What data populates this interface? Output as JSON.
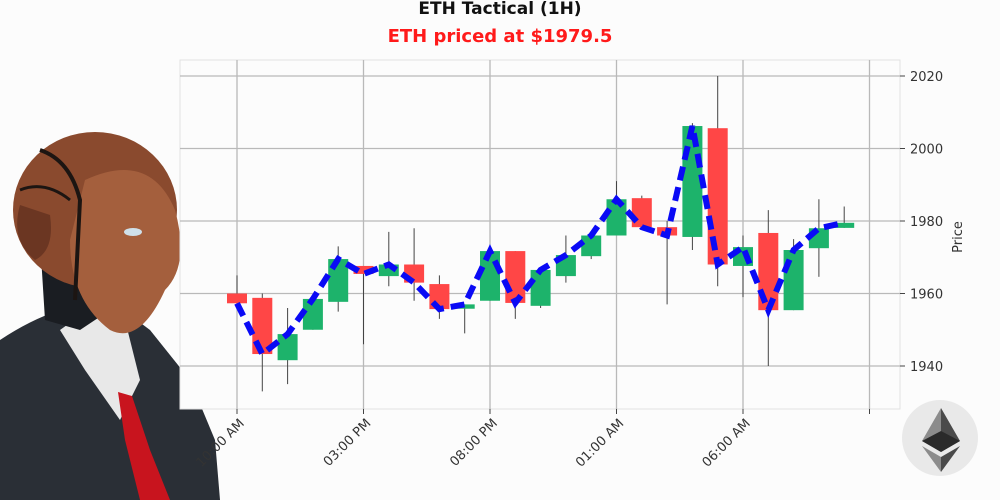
{
  "header": {
    "title": "ETH Tactical (1H)",
    "subtitle": "ETH priced at $1979.5",
    "subtitle_color": "#ff1a1a"
  },
  "colors": {
    "up": "#1db36b",
    "down": "#ff4646",
    "line": "#0a0af5",
    "grid": "#b9b9b9",
    "background": "#fcfcfc"
  },
  "decorations": {
    "left_image": "android-businessman-illustration",
    "corner_logo": "ethereum-logo"
  },
  "chart_data": {
    "type": "candlestick",
    "title": "ETH Tactical (1H)",
    "subtitle": "ETH priced at $1979.5",
    "xlabel": "",
    "ylabel": "Price",
    "ylim": [
      1933,
      2024
    ],
    "yticks": [
      1940,
      1960,
      1980,
      2000,
      2020
    ],
    "xticks": [
      "10:00 AM",
      "03:00 PM",
      "08:00 PM",
      "01:00 AM",
      "06:00 AM",
      ""
    ],
    "xtick_candle_index": [
      0,
      5,
      10,
      15,
      20,
      25
    ],
    "grid": true,
    "y_axis_position": "right",
    "overlay_line": {
      "style": "dashed",
      "color": "#0a0af5",
      "series": "close"
    },
    "candles": [
      {
        "o": 1960.0,
        "h": 1965.0,
        "l": 1957.3,
        "c": 1957.3
      },
      {
        "o": 1958.8,
        "h": 1960.0,
        "l": 1933.0,
        "c": 1943.3
      },
      {
        "o": 1941.6,
        "h": 1956.0,
        "l": 1935.0,
        "c": 1948.8
      },
      {
        "o": 1950.0,
        "h": 1958.5,
        "l": 1950.0,
        "c": 1958.5
      },
      {
        "o": 1957.7,
        "h": 1973.0,
        "l": 1955.0,
        "c": 1969.5
      },
      {
        "o": 1967.6,
        "h": 1967.6,
        "l": 1946.0,
        "c": 1965.4
      },
      {
        "o": 1964.8,
        "h": 1977.0,
        "l": 1962.0,
        "c": 1968.0
      },
      {
        "o": 1968.0,
        "h": 1978.0,
        "l": 1958.0,
        "c": 1963.0
      },
      {
        "o": 1962.6,
        "h": 1965.0,
        "l": 1953.0,
        "c": 1955.7
      },
      {
        "o": 1955.8,
        "h": 1957.0,
        "l": 1949.0,
        "c": 1957.0
      },
      {
        "o": 1958.0,
        "h": 1971.7,
        "l": 1958.0,
        "c": 1971.7
      },
      {
        "o": 1971.7,
        "h": 1971.7,
        "l": 1953.0,
        "c": 1957.4
      },
      {
        "o": 1956.6,
        "h": 1966.5,
        "l": 1956.0,
        "c": 1966.5
      },
      {
        "o": 1964.8,
        "h": 1976.0,
        "l": 1963.0,
        "c": 1970.6
      },
      {
        "o": 1970.3,
        "h": 1977.0,
        "l": 1969.5,
        "c": 1976.0
      },
      {
        "o": 1976.0,
        "h": 1991.0,
        "l": 1976.0,
        "c": 1986.0
      },
      {
        "o": 1986.3,
        "h": 1987.0,
        "l": 1978.3,
        "c": 1978.3
      },
      {
        "o": 1978.3,
        "h": 1980.0,
        "l": 1957.0,
        "c": 1976.0
      },
      {
        "o": 1975.6,
        "h": 2007.0,
        "l": 1972.0,
        "c": 2006.2
      },
      {
        "o": 2005.6,
        "h": 2020.0,
        "l": 1962.0,
        "c": 1968.0
      },
      {
        "o": 1967.6,
        "h": 1976.0,
        "l": 1959.0,
        "c": 1972.8
      },
      {
        "o": 1976.7,
        "h": 1983.0,
        "l": 1940.0,
        "c": 1955.4
      },
      {
        "o": 1955.4,
        "h": 1975.0,
        "l": 1955.4,
        "c": 1972.0
      },
      {
        "o": 1972.5,
        "h": 1986.0,
        "l": 1964.6,
        "c": 1978.0
      },
      {
        "o": 1978.1,
        "h": 1984.0,
        "l": 1978.1,
        "c": 1979.5
      }
    ]
  }
}
